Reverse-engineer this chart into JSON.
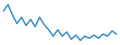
{
  "y": [
    32,
    38,
    28,
    20,
    26,
    18,
    24,
    17,
    26,
    19,
    14,
    8,
    14,
    8,
    12,
    5,
    9,
    4,
    8,
    6,
    9,
    6,
    10,
    8,
    13,
    10
  ],
  "line_color": "#3a8fc7",
  "background_color": "#ffffff",
  "linewidth": 1.1
}
